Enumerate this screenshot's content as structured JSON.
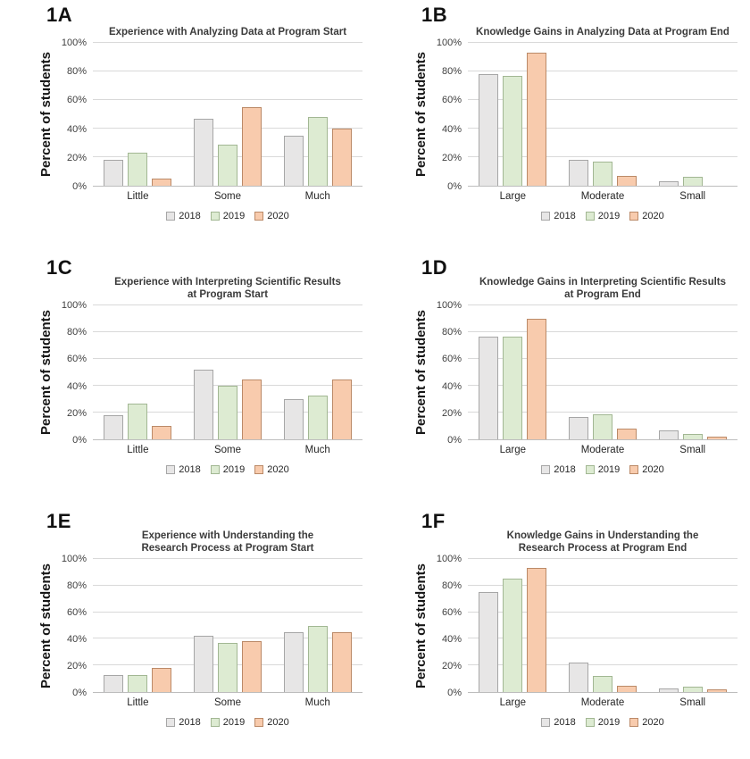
{
  "page": {
    "background": "#ffffff"
  },
  "series_styles": [
    {
      "name": "2018",
      "fill": "#e7e6e6",
      "border": "#a6a6a6"
    },
    {
      "name": "2019",
      "fill": "#ddebd2",
      "border": "#a2b793"
    },
    {
      "name": "2020",
      "fill": "#f8cbad",
      "border": "#bb8a68"
    }
  ],
  "axis_colors": {
    "gridline": "#d9d9d9",
    "axis_line": "#bdbdbd"
  },
  "chart_data": [
    {
      "panel_label": "1A",
      "type": "bar",
      "title": "Experience with Analyzing Data at Program Start",
      "ylabel": "Percent of students",
      "categories": [
        "Little",
        "Some",
        "Much"
      ],
      "series": [
        {
          "name": "2018",
          "values": [
            18,
            47,
            35
          ]
        },
        {
          "name": "2019",
          "values": [
            23,
            29,
            48
          ]
        },
        {
          "name": "2020",
          "values": [
            5,
            55,
            40
          ]
        }
      ],
      "ylim": [
        0,
        100
      ],
      "ytick_labels": [
        "0%",
        "20%",
        "40%",
        "60%",
        "80%",
        "100%"
      ],
      "legend": [
        "2018",
        "2019",
        "2020"
      ],
      "legend_position": "bottom",
      "grid": true
    },
    {
      "panel_label": "1B",
      "type": "bar",
      "title": "Knowledge Gains in Analyzing Data at Program End",
      "ylabel": "Percent of students",
      "categories": [
        "Large",
        "Moderate",
        "Small"
      ],
      "series": [
        {
          "name": "2018",
          "values": [
            78,
            18,
            3
          ]
        },
        {
          "name": "2019",
          "values": [
            77,
            17,
            6
          ]
        },
        {
          "name": "2020",
          "values": [
            93,
            7,
            0
          ]
        }
      ],
      "ylim": [
        0,
        100
      ],
      "ytick_labels": [
        "0%",
        "20%",
        "40%",
        "60%",
        "80%",
        "100%"
      ],
      "legend": [
        "2018",
        "2019",
        "2020"
      ],
      "legend_position": "bottom",
      "grid": true
    },
    {
      "panel_label": "1C",
      "type": "bar",
      "title": "Experience with Interpreting Scientific Results\nat Program Start",
      "ylabel": "Percent of students",
      "categories": [
        "Little",
        "Some",
        "Much"
      ],
      "series": [
        {
          "name": "2018",
          "values": [
            18,
            52,
            30
          ]
        },
        {
          "name": "2019",
          "values": [
            27,
            40,
            33
          ]
        },
        {
          "name": "2020",
          "values": [
            10,
            45,
            45
          ]
        }
      ],
      "ylim": [
        0,
        100
      ],
      "ytick_labels": [
        "0%",
        "20%",
        "40%",
        "60%",
        "80%",
        "100%"
      ],
      "legend": [
        "2018",
        "2019",
        "2020"
      ],
      "legend_position": "bottom",
      "grid": true
    },
    {
      "panel_label": "1D",
      "type": "bar",
      "title": "Knowledge Gains in Interpreting Scientific Results\nat Program End",
      "ylabel": "Percent of students",
      "categories": [
        "Large",
        "Moderate",
        "Small"
      ],
      "series": [
        {
          "name": "2018",
          "values": [
            77,
            17,
            7
          ]
        },
        {
          "name": "2019",
          "values": [
            77,
            19,
            4
          ]
        },
        {
          "name": "2020",
          "values": [
            90,
            8,
            2
          ]
        }
      ],
      "ylim": [
        0,
        100
      ],
      "ytick_labels": [
        "0%",
        "20%",
        "40%",
        "60%",
        "80%",
        "100%"
      ],
      "legend": [
        "2018",
        "2019",
        "2020"
      ],
      "legend_position": "bottom",
      "grid": true
    },
    {
      "panel_label": "1E",
      "type": "bar",
      "title": "Experience with Understanding the\nResearch Process at Program Start",
      "ylabel": "Percent of students",
      "categories": [
        "Little",
        "Some",
        "Much"
      ],
      "series": [
        {
          "name": "2018",
          "values": [
            13,
            42,
            45
          ]
        },
        {
          "name": "2019",
          "values": [
            13,
            37,
            50
          ]
        },
        {
          "name": "2020",
          "values": [
            18,
            38,
            45
          ]
        }
      ],
      "ylim": [
        0,
        100
      ],
      "ytick_labels": [
        "0%",
        "20%",
        "40%",
        "60%",
        "80%",
        "100%"
      ],
      "legend": [
        "2018",
        "2019",
        "2020"
      ],
      "legend_position": "bottom",
      "grid": true
    },
    {
      "panel_label": "1F",
      "type": "bar",
      "title": "Knowledge Gains in Understanding the\nResearch Process at Program End",
      "ylabel": "Percent of students",
      "categories": [
        "Large",
        "Moderate",
        "Small"
      ],
      "series": [
        {
          "name": "2018",
          "values": [
            75,
            22,
            3
          ]
        },
        {
          "name": "2019",
          "values": [
            85,
            12,
            4
          ]
        },
        {
          "name": "2020",
          "values": [
            93,
            5,
            2
          ]
        }
      ],
      "ylim": [
        0,
        100
      ],
      "ytick_labels": [
        "0%",
        "20%",
        "40%",
        "60%",
        "80%",
        "100%"
      ],
      "legend": [
        "2018",
        "2019",
        "2020"
      ],
      "legend_position": "bottom",
      "grid": true
    }
  ]
}
